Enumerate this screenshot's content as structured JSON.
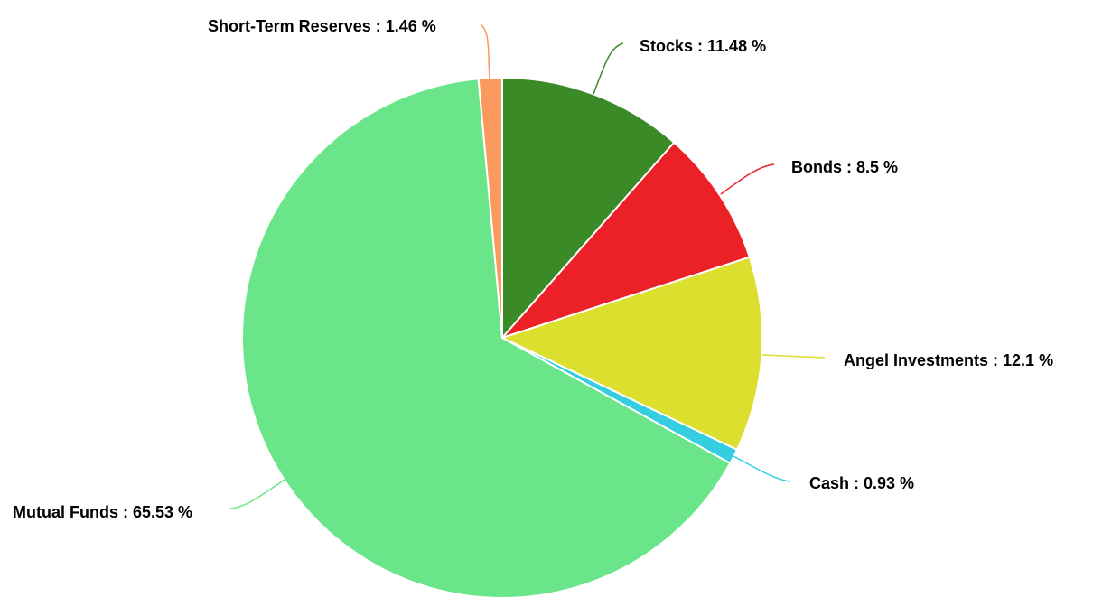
{
  "chart_data": {
    "type": "pie",
    "title": "",
    "legend": "none",
    "label_format": "{name} : {value} %",
    "slices": [
      {
        "name": "Stocks",
        "value": 11.48,
        "color": "#3b8a28"
      },
      {
        "name": "Bonds",
        "value": 8.5,
        "color": "#ec2027"
      },
      {
        "name": "Angel Investments",
        "value": 12.1,
        "color": "#dddf2e"
      },
      {
        "name": "Cash",
        "value": 0.93,
        "color": "#35cde0"
      },
      {
        "name": "Mutual Funds",
        "value": 65.53,
        "color": "#6be58a"
      },
      {
        "name": "Short-Term Reserves",
        "value": 1.46,
        "color": "#fa9a5e"
      }
    ]
  },
  "labels": {
    "stocks": "Stocks : 11.48 %",
    "bonds": "Bonds : 8.5 %",
    "angel": "Angel Investments : 12.1 %",
    "cash": "Cash : 0.93 %",
    "mutual": "Mutual Funds : 65.53 %",
    "reserves": "Short-Term Reserves : 1.46 %"
  }
}
